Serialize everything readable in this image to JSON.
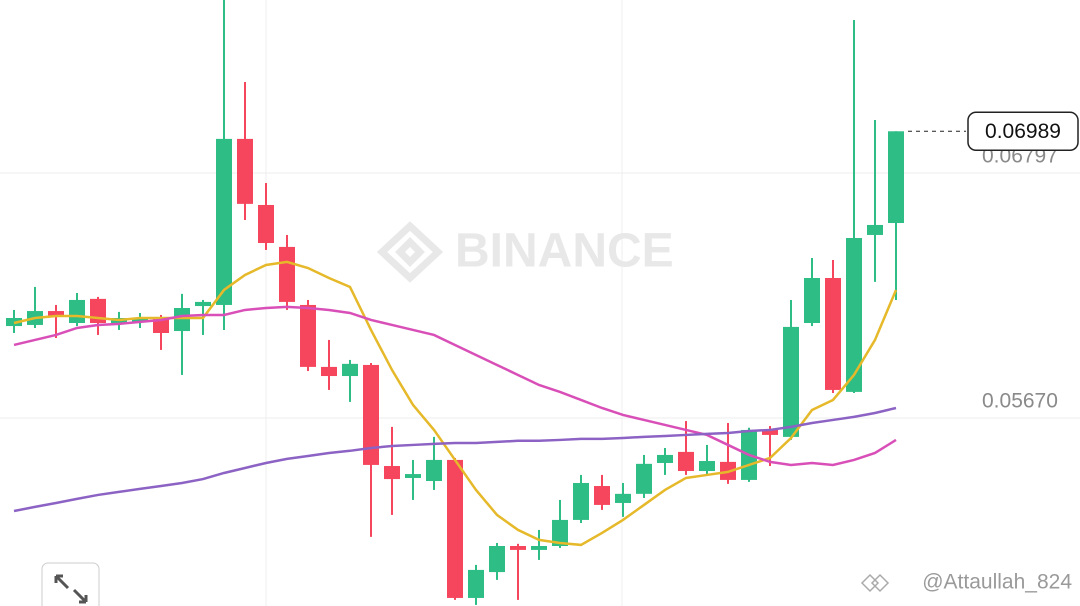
{
  "chart_data": {
    "type": "candlestick",
    "watermark": "BINANCE",
    "credit": "@Attaullah_824",
    "up_color": "#2ebd85",
    "down_color": "#f6465d",
    "open": [
      0.06093,
      0.06098,
      0.06162,
      0.06107,
      0.06218,
      0.06103,
      0.06112,
      0.06126,
      0.0607,
      0.06185,
      0.0619,
      0.06954,
      0.0665,
      0.06457,
      0.0619,
      0.05905,
      0.05863,
      0.05914,
      0.05449,
      0.05394,
      0.0538,
      0.05477,
      0.04842,
      0.04961,
      0.05081,
      0.05063,
      0.05081,
      0.05201,
      0.05357,
      0.05279,
      0.05321,
      0.05463,
      0.05514,
      0.05426,
      0.05468,
      0.05385,
      0.05615,
      0.05583,
      0.06107,
      0.06314,
      0.0579,
      0.06512,
      0.06567
    ],
    "high": [
      0.06167,
      0.06273,
      0.0619,
      0.06245,
      0.06227,
      0.06158,
      0.06153,
      0.06144,
      0.06241,
      0.06213,
      0.07593,
      0.07216,
      0.06751,
      0.06512,
      0.06213,
      0.06029,
      0.05937,
      0.05923,
      0.05629,
      0.05477,
      0.05583,
      0.05486,
      0.04994,
      0.05095,
      0.05091,
      0.05155,
      0.05293,
      0.05408,
      0.05408,
      0.05371,
      0.055,
      0.05532,
      0.05656,
      0.05546,
      0.05647,
      0.05625,
      0.05633,
      0.06213,
      0.06406,
      0.06397,
      0.07501,
      0.07041,
      0.06989
    ],
    "low": [
      0.06061,
      0.06084,
      0.06038,
      0.06093,
      0.06052,
      0.06075,
      0.06084,
      0.05983,
      0.05868,
      0.06052,
      0.06075,
      0.06581,
      0.06443,
      0.06167,
      0.05886,
      0.05799,
      0.05744,
      0.05123,
      0.05224,
      0.05293,
      0.05339,
      0.04833,
      0.0481,
      0.04925,
      0.04833,
      0.05017,
      0.05072,
      0.05187,
      0.05247,
      0.05215,
      0.05302,
      0.05408,
      0.05408,
      0.05403,
      0.05367,
      0.05376,
      0.05449,
      0.05569,
      0.06093,
      0.05785,
      0.05785,
      0.06296,
      0.06213
    ],
    "close": [
      0.0613,
      0.06162,
      0.06139,
      0.06213,
      0.06107,
      0.0613,
      0.0613,
      0.06061,
      0.06176,
      0.06204,
      0.06954,
      0.06655,
      0.06475,
      0.06204,
      0.05905,
      0.05863,
      0.05919,
      0.05454,
      0.05389,
      0.05412,
      0.05477,
      0.04842,
      0.04971,
      0.05081,
      0.05063,
      0.05081,
      0.05201,
      0.05371,
      0.0527,
      0.05321,
      0.05459,
      0.055,
      0.05426,
      0.05472,
      0.05385,
      0.05615,
      0.05592,
      0.06089,
      0.06314,
      0.05799,
      0.06498,
      0.06558,
      0.06989
    ],
    "series": [
      {
        "color": "#e6b92a",
        "values": [
          0.06107,
          0.0613,
          0.06139,
          0.06139,
          0.0613,
          0.06121,
          0.0613,
          0.0613,
          0.0613,
          0.0613,
          0.06259,
          0.06328,
          0.06374,
          0.06388,
          0.0636,
          0.06314,
          0.06273,
          0.06075,
          0.05891,
          0.0573,
          0.05615,
          0.05477,
          0.05339,
          0.05224,
          0.05155,
          0.05109,
          0.05095,
          0.05086,
          0.05141,
          0.05201,
          0.0527,
          0.05339,
          0.05394,
          0.05408,
          0.05422,
          0.05454,
          0.05486,
          0.05578,
          0.05707,
          0.05753,
          0.05868,
          0.06029,
          0.06259
        ]
      },
      {
        "color": "#d94fb8",
        "values": [
          0.06006,
          0.06029,
          0.06052,
          0.06084,
          0.06098,
          0.06103,
          0.06112,
          0.06121,
          0.06139,
          0.06144,
          0.06144,
          0.06167,
          0.06176,
          0.06181,
          0.06176,
          0.06167,
          0.06153,
          0.06121,
          0.06098,
          0.06075,
          0.06052,
          0.06006,
          0.0596,
          0.05914,
          0.05868,
          0.05822,
          0.0579,
          0.05753,
          0.05716,
          0.05684,
          0.05661,
          0.05638,
          0.05615,
          0.05592,
          0.05546,
          0.055,
          0.05468,
          0.05454,
          0.05463,
          0.05454,
          0.05477,
          0.05509,
          0.05569
        ]
      },
      {
        "color": "#8c63c4",
        "values": [
          0.05242,
          0.05261,
          0.05279,
          0.05298,
          0.05316,
          0.0533,
          0.05344,
          0.05357,
          0.05371,
          0.05389,
          0.05417,
          0.0544,
          0.05463,
          0.05482,
          0.05495,
          0.05509,
          0.05519,
          0.05532,
          0.05541,
          0.05546,
          0.05551,
          0.05555,
          0.05555,
          0.0556,
          0.05565,
          0.05565,
          0.05569,
          0.05574,
          0.05574,
          0.05578,
          0.05583,
          0.05587,
          0.05592,
          0.05597,
          0.05601,
          0.0561,
          0.05615,
          0.05629,
          0.05647,
          0.05661,
          0.05675,
          0.05693,
          0.05716
        ]
      }
    ],
    "last_price": 0.06989,
    "ylim": [
      0.04805,
      0.07593
    ],
    "yticks": [
      0.06797,
      {
        "value": 0.0567,
        "label": "0.05670"
      }
    ],
    "grid": true
  }
}
